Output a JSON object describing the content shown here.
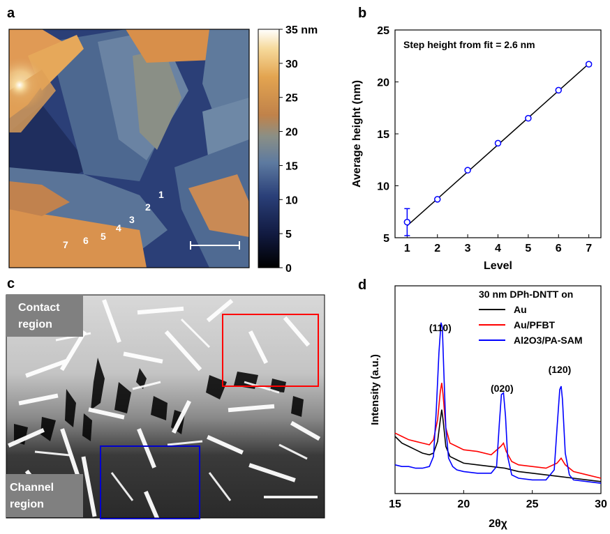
{
  "panels": {
    "a": {
      "letter": "a",
      "colorbar_ticks": [
        "35 nm",
        "30",
        "25",
        "20",
        "15",
        "10",
        "5",
        "0"
      ],
      "colorbar_max_nm": 35,
      "level_labels": [
        "1",
        "2",
        "3",
        "4",
        "5",
        "6",
        "7"
      ]
    },
    "b": {
      "letter": "b"
    },
    "c": {
      "letter": "c",
      "contact_label": [
        "Contact",
        "region"
      ],
      "channel_label": [
        "Channel",
        "region"
      ]
    },
    "d": {
      "letter": "d"
    }
  },
  "chart_data": [
    {
      "panel": "b",
      "type": "scatter",
      "annotation": "Step height from fit = 2.6 nm",
      "xlabel": "Level",
      "ylabel": "Average height (nm)",
      "xlim": [
        0.6,
        7.4
      ],
      "ylim": [
        5,
        25
      ],
      "xticks": [
        1,
        2,
        3,
        4,
        5,
        6,
        7
      ],
      "yticks": [
        5,
        10,
        15,
        20,
        25
      ],
      "points": [
        {
          "x": 1,
          "y": 6.5,
          "err": 1.3
        },
        {
          "x": 2,
          "y": 8.7,
          "err": 0
        },
        {
          "x": 3,
          "y": 11.5,
          "err": 0
        },
        {
          "x": 4,
          "y": 14.1,
          "err": 0
        },
        {
          "x": 5,
          "y": 16.5,
          "err": 0
        },
        {
          "x": 6,
          "y": 19.2,
          "err": 0
        },
        {
          "x": 7,
          "y": 21.7,
          "err": 0.15
        }
      ],
      "fit_line": {
        "slope": 2.6,
        "intercept": 3.55
      },
      "marker_color": "#0000ff",
      "line_color": "#000000"
    },
    {
      "panel": "d",
      "type": "line",
      "xlabel": "2θχ",
      "ylabel": "Intensity (a.u.)",
      "xlim": [
        15,
        30
      ],
      "xticks": [
        15,
        20,
        25,
        30
      ],
      "legend_title": "30 nm DPh-DNTT on",
      "legend_position": "top-right",
      "peak_labels": [
        {
          "text": "(110)",
          "x": 18.4
        },
        {
          "text": "(020)",
          "x": 22.9
        },
        {
          "text": "(120)",
          "x": 27.1
        }
      ],
      "series": [
        {
          "name": "Au",
          "color": "#000000",
          "x": [
            15,
            15.5,
            16,
            16.5,
            17,
            17.5,
            17.8,
            18.1,
            18.3,
            18.4,
            18.5,
            18.7,
            19,
            19.5,
            20,
            21,
            22,
            23,
            24,
            25,
            26,
            27,
            28,
            29,
            30
          ],
          "y": [
            0.3,
            0.26,
            0.24,
            0.22,
            0.2,
            0.19,
            0.2,
            0.27,
            0.4,
            0.46,
            0.4,
            0.24,
            0.18,
            0.16,
            0.14,
            0.13,
            0.12,
            0.11,
            0.09,
            0.08,
            0.07,
            0.06,
            0.05,
            0.04,
            0.03
          ]
        },
        {
          "name": "Au/PFBT",
          "color": "#ff0000",
          "x": [
            15,
            15.5,
            16,
            16.5,
            17,
            17.5,
            17.8,
            18.1,
            18.3,
            18.4,
            18.5,
            18.7,
            19,
            19.5,
            20,
            21,
            22,
            22.7,
            22.9,
            23.1,
            23.5,
            24,
            25,
            26,
            26.8,
            27.1,
            27.4,
            28,
            29,
            30
          ],
          "y": [
            0.32,
            0.3,
            0.28,
            0.27,
            0.26,
            0.25,
            0.28,
            0.4,
            0.57,
            0.62,
            0.55,
            0.35,
            0.26,
            0.24,
            0.22,
            0.21,
            0.19,
            0.24,
            0.26,
            0.21,
            0.15,
            0.13,
            0.12,
            0.11,
            0.14,
            0.17,
            0.13,
            0.09,
            0.07,
            0.05
          ]
        },
        {
          "name": "Al2O3/PA-SAM",
          "color": "#0000ff",
          "x": [
            15,
            15.5,
            16,
            16.5,
            17,
            17.5,
            17.8,
            18.0,
            18.2,
            18.35,
            18.45,
            18.55,
            18.7,
            18.9,
            19.2,
            19.5,
            20,
            21,
            22,
            22.4,
            22.6,
            22.75,
            22.9,
            23.05,
            23.2,
            23.5,
            24,
            25,
            26,
            26.6,
            26.8,
            27.0,
            27.1,
            27.2,
            27.4,
            27.7,
            28,
            29,
            30
          ],
          "y": [
            0.13,
            0.12,
            0.12,
            0.11,
            0.11,
            0.12,
            0.18,
            0.45,
            0.8,
            0.98,
            0.95,
            0.7,
            0.35,
            0.17,
            0.12,
            0.1,
            0.09,
            0.08,
            0.08,
            0.12,
            0.38,
            0.55,
            0.56,
            0.42,
            0.18,
            0.07,
            0.05,
            0.04,
            0.04,
            0.1,
            0.35,
            0.58,
            0.6,
            0.52,
            0.2,
            0.07,
            0.04,
            0.03,
            0.02
          ]
        }
      ]
    }
  ]
}
